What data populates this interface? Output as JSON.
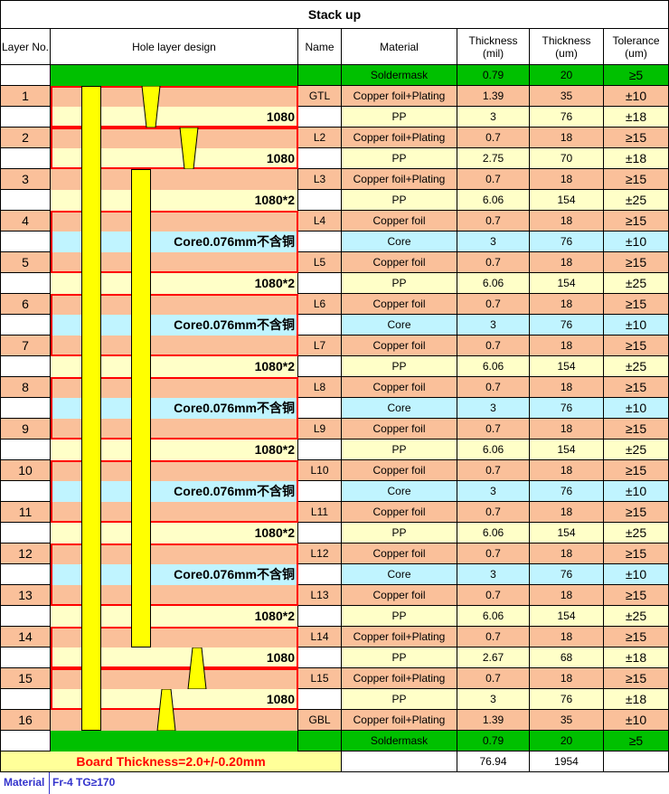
{
  "title": "Stack up",
  "headers": {
    "layer_no": "Layer No.",
    "hole_design": "Hole layer design",
    "name": "Name",
    "material": "Material",
    "thick_mil": "Thickness\n(mil)",
    "thick_um": "Thickness\n(um)",
    "tolerance": "Tolerance\n(um)"
  },
  "colors": {
    "soldermask": "#00c000",
    "copper": "#fac09a",
    "pp": "#ffffc8",
    "core": "#c0f4ff",
    "outline": "#ff0000",
    "drill": "#ffff00",
    "board_fill": "#ffff99"
  },
  "rows": [
    {
      "layer": "",
      "name": "",
      "material": "Soldermask",
      "mil": "0.79",
      "um": "20",
      "tol": "≥5",
      "type": "soldermask",
      "label": ""
    },
    {
      "layer": "1",
      "name": "GTL",
      "material": "Copper foil+Plating",
      "mil": "1.39",
      "um": "35",
      "tol": "±10",
      "type": "copper",
      "label": ""
    },
    {
      "layer": "",
      "name": "",
      "material": "PP",
      "mil": "3",
      "um": "76",
      "tol": "±18",
      "type": "pp",
      "label": "1080"
    },
    {
      "layer": "2",
      "name": "L2",
      "material": "Copper foil+Plating",
      "mil": "0.7",
      "um": "18",
      "tol": "≥15",
      "type": "copper",
      "label": ""
    },
    {
      "layer": "",
      "name": "",
      "material": "PP",
      "mil": "2.75",
      "um": "70",
      "tol": "±18",
      "type": "pp",
      "label": "1080"
    },
    {
      "layer": "3",
      "name": "L3",
      "material": "Copper foil+Plating",
      "mil": "0.7",
      "um": "18",
      "tol": "≥15",
      "type": "copper",
      "label": ""
    },
    {
      "layer": "",
      "name": "",
      "material": "PP",
      "mil": "6.06",
      "um": "154",
      "tol": "±25",
      "type": "pp",
      "label": "1080*2"
    },
    {
      "layer": "4",
      "name": "L4",
      "material": "Copper foil",
      "mil": "0.7",
      "um": "18",
      "tol": "≥15",
      "type": "copper",
      "label": ""
    },
    {
      "layer": "",
      "name": "",
      "material": "Core",
      "mil": "3",
      "um": "76",
      "tol": "±10",
      "type": "core",
      "label": "Core0.076mm不含铜"
    },
    {
      "layer": "5",
      "name": "L5",
      "material": "Copper foil",
      "mil": "0.7",
      "um": "18",
      "tol": "≥15",
      "type": "copper",
      "label": ""
    },
    {
      "layer": "",
      "name": "",
      "material": "PP",
      "mil": "6.06",
      "um": "154",
      "tol": "±25",
      "type": "pp",
      "label": "1080*2"
    },
    {
      "layer": "6",
      "name": "L6",
      "material": "Copper foil",
      "mil": "0.7",
      "um": "18",
      "tol": "≥15",
      "type": "copper",
      "label": ""
    },
    {
      "layer": "",
      "name": "",
      "material": "Core",
      "mil": "3",
      "um": "76",
      "tol": "±10",
      "type": "core",
      "label": "Core0.076mm不含铜"
    },
    {
      "layer": "7",
      "name": "L7",
      "material": "Copper foil",
      "mil": "0.7",
      "um": "18",
      "tol": "≥15",
      "type": "copper",
      "label": ""
    },
    {
      "layer": "",
      "name": "",
      "material": "PP",
      "mil": "6.06",
      "um": "154",
      "tol": "±25",
      "type": "pp",
      "label": "1080*2"
    },
    {
      "layer": "8",
      "name": "L8",
      "material": "Copper foil",
      "mil": "0.7",
      "um": "18",
      "tol": "≥15",
      "type": "copper",
      "label": ""
    },
    {
      "layer": "",
      "name": "",
      "material": "Core",
      "mil": "3",
      "um": "76",
      "tol": "±10",
      "type": "core",
      "label": "Core0.076mm不含铜"
    },
    {
      "layer": "9",
      "name": "L9",
      "material": "Copper foil",
      "mil": "0.7",
      "um": "18",
      "tol": "≥15",
      "type": "copper",
      "label": ""
    },
    {
      "layer": "",
      "name": "",
      "material": "PP",
      "mil": "6.06",
      "um": "154",
      "tol": "±25",
      "type": "pp",
      "label": "1080*2"
    },
    {
      "layer": "10",
      "name": "L10",
      "material": "Copper foil",
      "mil": "0.7",
      "um": "18",
      "tol": "≥15",
      "type": "copper",
      "label": ""
    },
    {
      "layer": "",
      "name": "",
      "material": "Core",
      "mil": "3",
      "um": "76",
      "tol": "±10",
      "type": "core",
      "label": "Core0.076mm不含铜"
    },
    {
      "layer": "11",
      "name": "L11",
      "material": "Copper foil",
      "mil": "0.7",
      "um": "18",
      "tol": "≥15",
      "type": "copper",
      "label": ""
    },
    {
      "layer": "",
      "name": "",
      "material": "PP",
      "mil": "6.06",
      "um": "154",
      "tol": "±25",
      "type": "pp",
      "label": "1080*2"
    },
    {
      "layer": "12",
      "name": "L12",
      "material": "Copper foil",
      "mil": "0.7",
      "um": "18",
      "tol": "≥15",
      "type": "copper",
      "label": ""
    },
    {
      "layer": "",
      "name": "",
      "material": "Core",
      "mil": "3",
      "um": "76",
      "tol": "±10",
      "type": "core",
      "label": "Core0.076mm不含铜"
    },
    {
      "layer": "13",
      "name": "L13",
      "material": "Copper foil",
      "mil": "0.7",
      "um": "18",
      "tol": "≥15",
      "type": "copper",
      "label": ""
    },
    {
      "layer": "",
      "name": "",
      "material": "PP",
      "mil": "6.06",
      "um": "154",
      "tol": "±25",
      "type": "pp",
      "label": "1080*2"
    },
    {
      "layer": "14",
      "name": "L14",
      "material": "Copper foil+Plating",
      "mil": "0.7",
      "um": "18",
      "tol": "≥15",
      "type": "copper",
      "label": ""
    },
    {
      "layer": "",
      "name": "",
      "material": "PP",
      "mil": "2.67",
      "um": "68",
      "tol": "±18",
      "type": "pp",
      "label": "1080"
    },
    {
      "layer": "15",
      "name": "L15",
      "material": "Copper foil+Plating",
      "mil": "0.7",
      "um": "18",
      "tol": "≥15",
      "type": "copper",
      "label": ""
    },
    {
      "layer": "",
      "name": "",
      "material": "PP",
      "mil": "3",
      "um": "76",
      "tol": "±18",
      "type": "pp",
      "label": "1080"
    },
    {
      "layer": "16",
      "name": "GBL",
      "material": "Copper foil+Plating",
      "mil": "1.39",
      "um": "35",
      "tol": "±10",
      "type": "copper",
      "label": ""
    },
    {
      "layer": "",
      "name": "",
      "material": "Soldermask",
      "mil": "0.79",
      "um": "20",
      "tol": "≥5",
      "type": "soldermask",
      "label": ""
    }
  ],
  "board_thickness": "Board Thickness=2.0+/-0.20mm",
  "totals": {
    "mil": "76.94",
    "um": "1954"
  },
  "material_label": "Material",
  "material_value": "Fr-4  TG≥170"
}
